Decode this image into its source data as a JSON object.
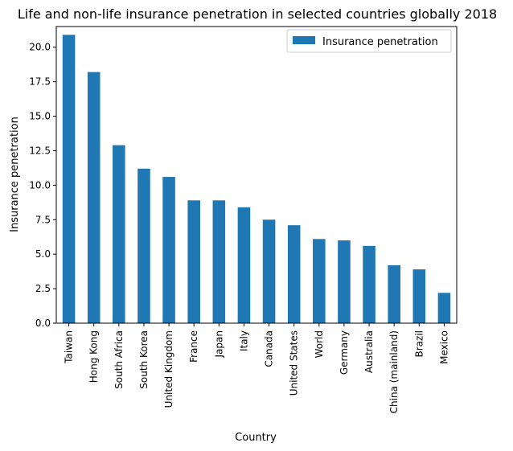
{
  "chart_data": {
    "type": "bar",
    "title": "Life and non-life insurance penetration in selected countries globally 2018",
    "xlabel": "Country",
    "ylabel": "Insurance penetration",
    "ylim": [
      0,
      21.5
    ],
    "yticks": [
      "0.0",
      "2.5",
      "5.0",
      "7.5",
      "10.0",
      "12.5",
      "15.0",
      "17.5",
      "20.0"
    ],
    "grid": false,
    "legend_position": "top-right",
    "categories": [
      "Taiwan",
      "Hong Kong",
      "South Africa",
      "South Korea",
      "United Kingdom",
      "France",
      "Japan",
      "Italy",
      "Canada",
      "United States",
      "World",
      "Germany",
      "Australia",
      "China (mainland)",
      "Brazil",
      "Mexico"
    ],
    "series": [
      {
        "name": "Insurance penetration",
        "color": "#1f77b4",
        "values": [
          20.9,
          18.2,
          12.9,
          11.2,
          10.6,
          8.9,
          8.9,
          8.4,
          7.5,
          7.1,
          6.1,
          6.0,
          5.6,
          4.2,
          3.9,
          2.2
        ]
      }
    ]
  }
}
